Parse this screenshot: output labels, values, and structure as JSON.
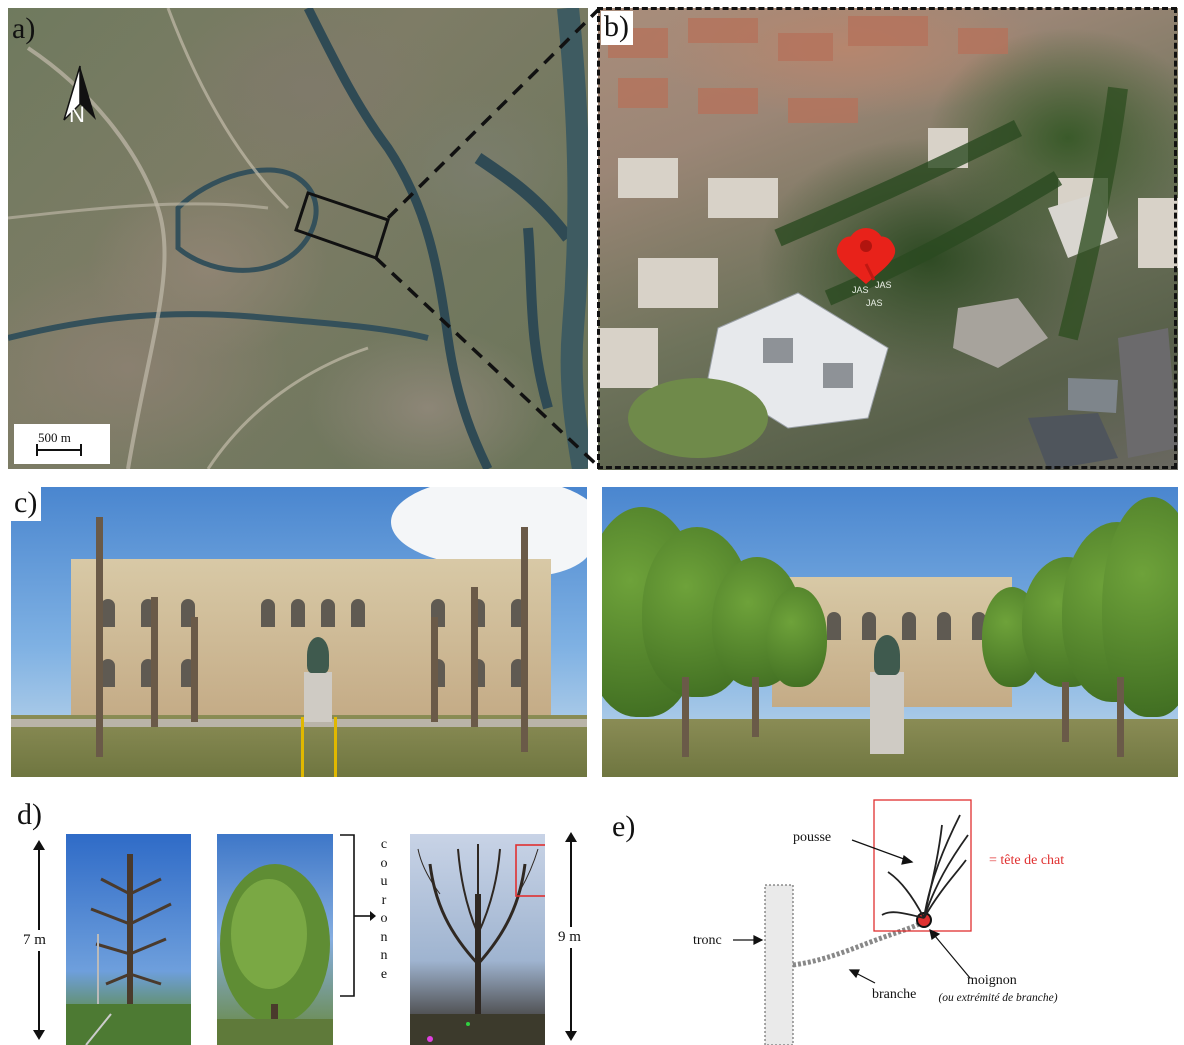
{
  "panels": {
    "a": {
      "label": "a)",
      "scale_text": "500 m",
      "north": "N"
    },
    "b": {
      "label": "b)",
      "markers": [
        "JAS",
        "JAS",
        "JAS"
      ]
    },
    "c": {
      "label": "c)"
    },
    "d": {
      "label": "d)",
      "height_left": "7 m",
      "height_right": "9 m",
      "crown_label": "couronne"
    },
    "e": {
      "label": "e)",
      "pousse": "pousse",
      "tete_de_chat": "= tête de chat",
      "tronc": "tronc",
      "branche": "branche",
      "moignon": "moignon",
      "moignon_note": "(ou extrémité de branche)"
    }
  },
  "colors": {
    "highlight_box": "#e03030",
    "pin": "#e8221a",
    "text": "#111111"
  }
}
